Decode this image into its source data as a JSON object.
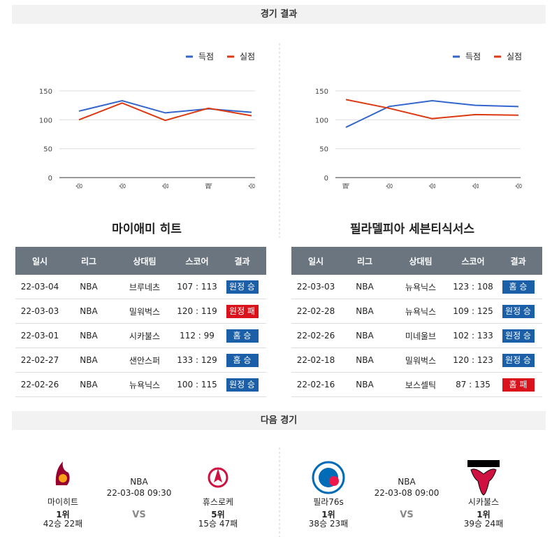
{
  "header": {
    "results_title": "경기 결과",
    "next_title": "다음 경기"
  },
  "chart_data": [
    {
      "type": "line",
      "categories": [
        "승",
        "승",
        "승",
        "패",
        "승"
      ],
      "series": [
        {
          "name": "득점",
          "color": "#3366cc",
          "values": [
            115,
            133,
            112,
            119,
            113
          ]
        },
        {
          "name": "실점",
          "color": "#dc3912",
          "values": [
            100,
            129,
            99,
            120,
            107
          ]
        }
      ],
      "ylim": [
        0,
        150
      ],
      "yticks": [
        0,
        50,
        100,
        150
      ],
      "grid": true,
      "legend": "top-right"
    },
    {
      "type": "line",
      "categories": [
        "패",
        "승",
        "승",
        "승",
        "승"
      ],
      "series": [
        {
          "name": "득점",
          "color": "#3366cc",
          "values": [
            87,
            123,
            133,
            125,
            123
          ]
        },
        {
          "name": "실점",
          "color": "#dc3912",
          "values": [
            135,
            120,
            102,
            109,
            108
          ]
        }
      ],
      "ylim": [
        0,
        150
      ],
      "yticks": [
        0,
        50,
        100,
        150
      ],
      "grid": true,
      "legend": "top-right"
    }
  ],
  "teams": [
    "마이애미 히트",
    "필라델피아 세븐티식서스"
  ],
  "tables": [
    {
      "columns": [
        "일시",
        "리그",
        "상대팀",
        "스코어",
        "결과"
      ],
      "rows": [
        {
          "date": "22-03-04",
          "league": "NBA",
          "opponent": "브루네츠",
          "score": "107 : 113",
          "result": "원정 승",
          "result_color": "#1a5fa8"
        },
        {
          "date": "22-03-03",
          "league": "NBA",
          "opponent": "밀워벅스",
          "score": "120 : 119",
          "result": "원정 패",
          "result_color": "#d9121b"
        },
        {
          "date": "22-03-01",
          "league": "NBA",
          "opponent": "시카불스",
          "score": "112 : 99",
          "result": "홈 승",
          "result_color": "#1a5fa8"
        },
        {
          "date": "22-02-27",
          "league": "NBA",
          "opponent": "샌안스퍼",
          "score": "133 : 129",
          "result": "홈 승",
          "result_color": "#1a5fa8"
        },
        {
          "date": "22-02-26",
          "league": "NBA",
          "opponent": "뉴욕닉스",
          "score": "100 : 115",
          "result": "원정 승",
          "result_color": "#1a5fa8"
        }
      ]
    },
    {
      "columns": [
        "일시",
        "리그",
        "상대팀",
        "스코어",
        "결과"
      ],
      "rows": [
        {
          "date": "22-03-03",
          "league": "NBA",
          "opponent": "뉴욕닉스",
          "score": "123 : 108",
          "result": "홈 승",
          "result_color": "#1a5fa8"
        },
        {
          "date": "22-02-28",
          "league": "NBA",
          "opponent": "뉴욕닉스",
          "score": "109 : 125",
          "result": "원정 승",
          "result_color": "#1a5fa8"
        },
        {
          "date": "22-02-26",
          "league": "NBA",
          "opponent": "미네울브",
          "score": "102 : 133",
          "result": "원정 승",
          "result_color": "#1a5fa8"
        },
        {
          "date": "22-02-18",
          "league": "NBA",
          "opponent": "밀워벅스",
          "score": "120 : 123",
          "result": "원정 승",
          "result_color": "#1a5fa8"
        },
        {
          "date": "22-02-16",
          "league": "NBA",
          "opponent": "보스셀틱",
          "score": "87 : 135",
          "result": "홈 패",
          "result_color": "#d9121b"
        }
      ]
    }
  ],
  "next_games": [
    {
      "league": "NBA",
      "datetime": "22-03-08 09:30",
      "vs": "VS",
      "home": {
        "name": "마이히트",
        "rank": "1위",
        "record": "42승 22패"
      },
      "away": {
        "name": "휴스로케",
        "rank": "5위",
        "record": "15승 47패"
      }
    },
    {
      "league": "NBA",
      "datetime": "22-03-08 09:00",
      "vs": "VS",
      "home": {
        "name": "필라76s",
        "rank": "1위",
        "record": "38승 23패"
      },
      "away": {
        "name": "시카불스",
        "rank": "1위",
        "record": "39승 24패"
      }
    }
  ]
}
